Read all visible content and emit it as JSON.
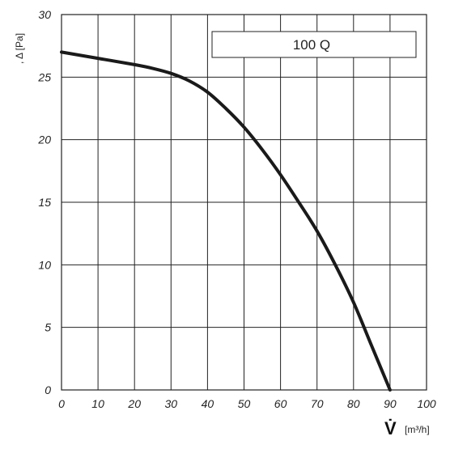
{
  "chart_data": {
    "type": "line",
    "title": "",
    "xlabel_symbol": "V̇",
    "xlabel_unit": "[m³/h]",
    "ylabel": ", Δ [Pa]",
    "xlim": [
      0,
      100
    ],
    "ylim": [
      0,
      30
    ],
    "x_ticks": [
      0,
      10,
      20,
      30,
      40,
      50,
      60,
      70,
      80,
      90,
      100
    ],
    "y_ticks": [
      0,
      5,
      10,
      15,
      20,
      25,
      30
    ],
    "grid": true,
    "legend": {
      "label": "100 Q",
      "placement": "top-right"
    },
    "line_color": "#1a1a1a",
    "series": [
      {
        "name": "100 Q",
        "x": [
          0,
          10,
          20,
          25,
          30,
          35,
          40,
          45,
          50,
          55,
          60,
          65,
          70,
          75,
          80,
          85,
          90
        ],
        "y": [
          27,
          26.5,
          26,
          25.7,
          25.3,
          24.7,
          23.8,
          22.5,
          21,
          19.2,
          17.2,
          15,
          12.7,
          10,
          7,
          3.5,
          0
        ]
      }
    ]
  }
}
